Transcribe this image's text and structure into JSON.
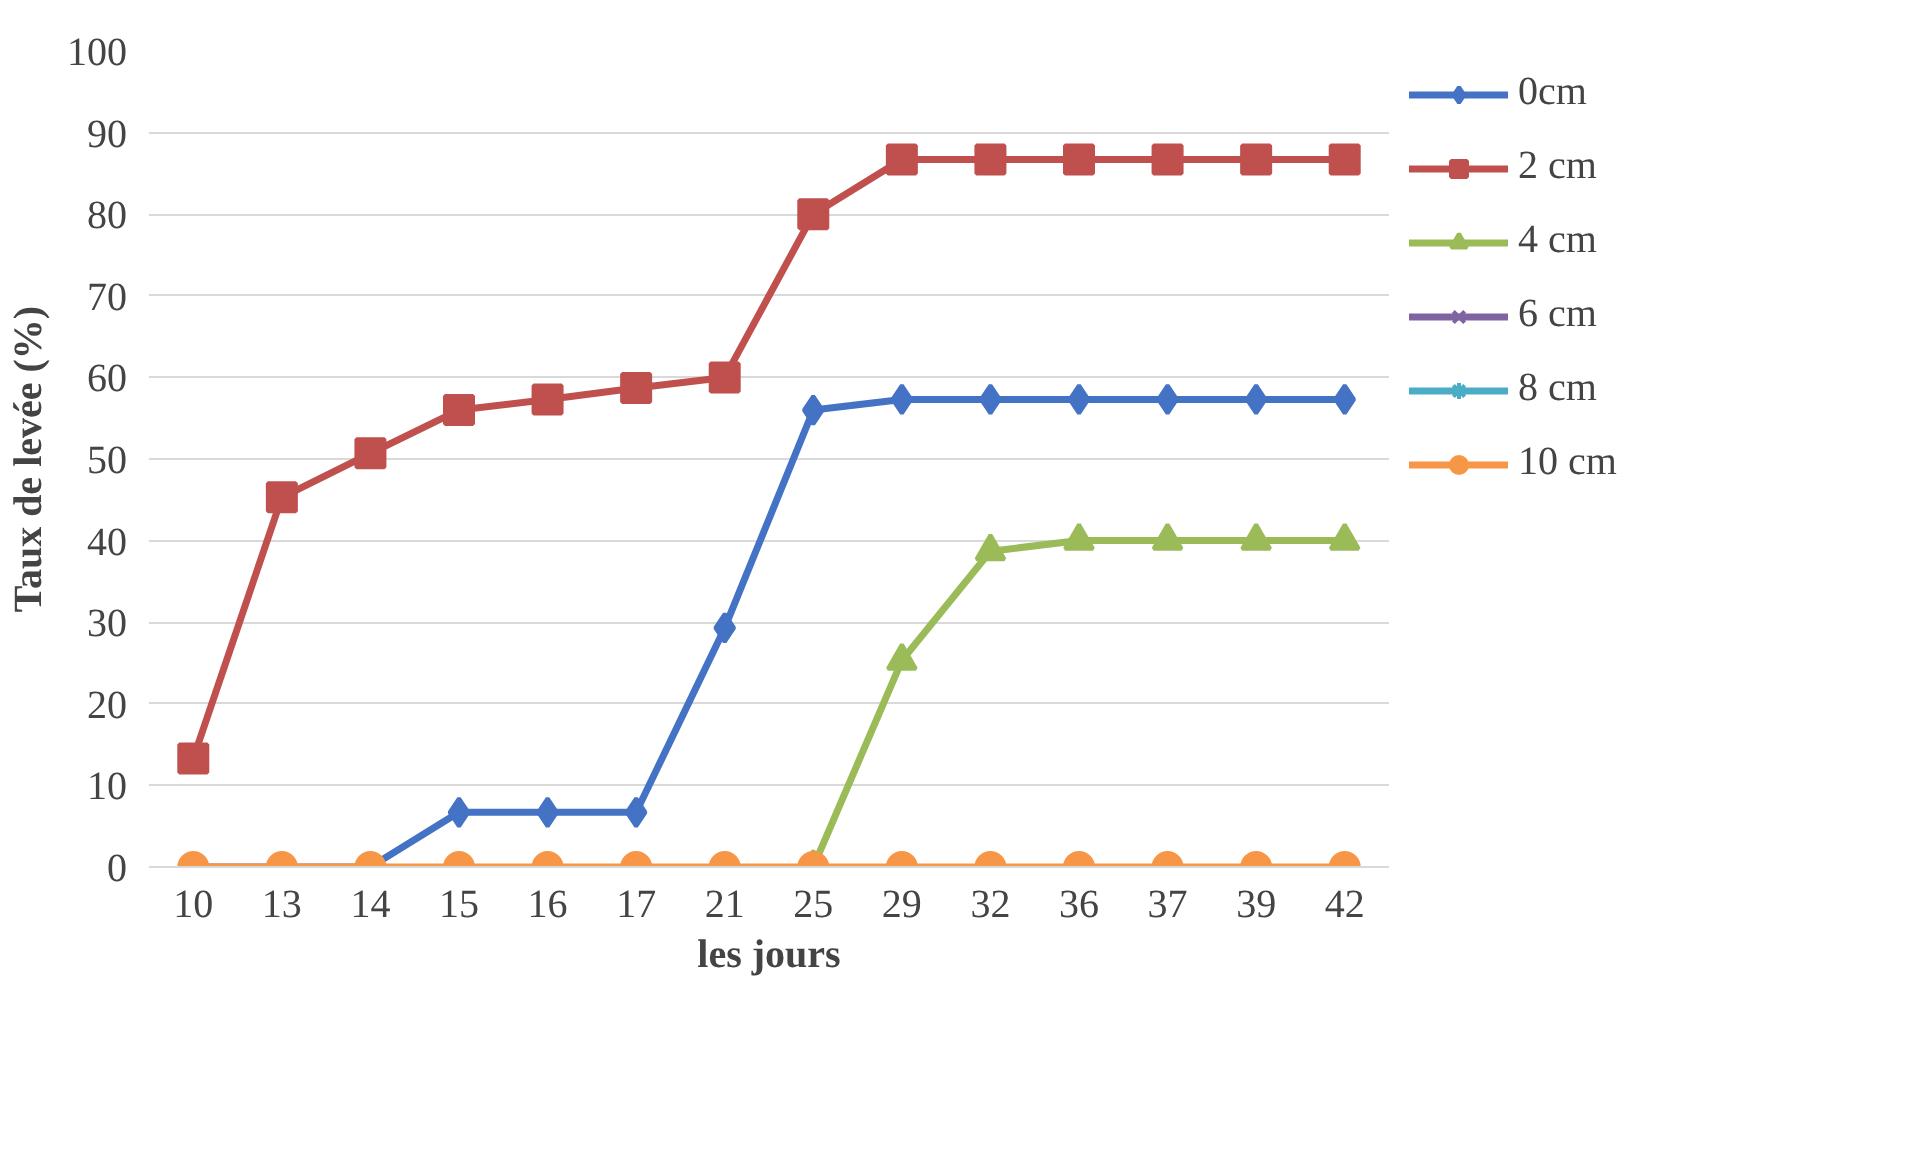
{
  "chart_data": {
    "type": "line",
    "xlabel": "les jours",
    "ylabel": "Taux de levée (%)",
    "categories": [
      "10",
      "13",
      "14",
      "15",
      "16",
      "17",
      "21",
      "25",
      "29",
      "32",
      "36",
      "37",
      "39",
      "42"
    ],
    "ylim": [
      0,
      100
    ],
    "yticks": [
      0,
      10,
      20,
      30,
      40,
      50,
      60,
      70,
      80,
      90,
      100
    ],
    "grid": "y",
    "legend": "right",
    "line_style": "solid",
    "series": [
      {
        "name": "0cm",
        "color": "#4472c4",
        "marker": "diamond",
        "values": [
          0,
          0,
          0,
          6.7,
          6.7,
          6.7,
          29.3,
          56,
          57.3,
          57.3,
          57.3,
          57.3,
          57.3,
          57.3
        ]
      },
      {
        "name": "2 cm",
        "color": "#c0504d",
        "marker": "square",
        "values": [
          13.3,
          45.3,
          50.7,
          56,
          57.3,
          58.7,
          60,
          80,
          86.7,
          86.7,
          86.7,
          86.7,
          86.7,
          86.7
        ]
      },
      {
        "name": "4 cm",
        "color": "#9bbb59",
        "marker": "triangle",
        "values": [
          null,
          null,
          null,
          null,
          null,
          null,
          null,
          0,
          25.3,
          38.7,
          40,
          40,
          40,
          40
        ]
      },
      {
        "name": "6 cm",
        "color": "#8064a2",
        "marker": "cross",
        "values": [
          null,
          null,
          null,
          null,
          null,
          null,
          null,
          null,
          null,
          null,
          null,
          null,
          null,
          null
        ]
      },
      {
        "name": "8 cm",
        "color": "#4bacc6",
        "marker": "star",
        "values": [
          null,
          null,
          null,
          null,
          null,
          null,
          null,
          null,
          null,
          null,
          null,
          null,
          null,
          null
        ]
      },
      {
        "name": "10 cm",
        "color": "#f79646",
        "marker": "circle",
        "values": [
          0,
          0,
          0,
          0,
          0,
          0,
          0,
          0,
          0,
          0,
          0,
          0,
          0,
          0
        ]
      }
    ]
  }
}
